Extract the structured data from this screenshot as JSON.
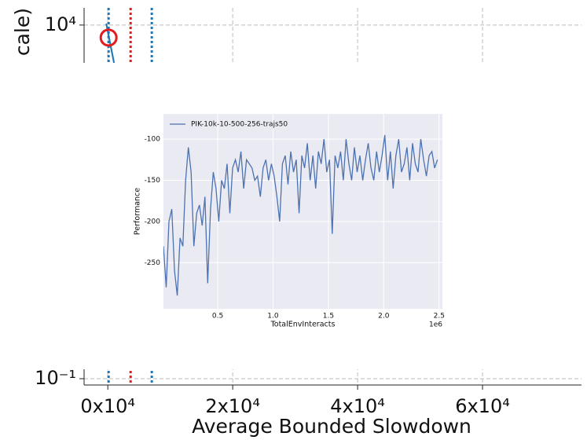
{
  "chart_data": [
    {
      "type": "line",
      "ylabel": "cale)",
      "xlabel": "Average Bounded Slowdown",
      "ylog": true,
      "grid": true,
      "xlim": [
        -3800,
        75850
      ],
      "ylim": [
        0.0815,
        17500
      ],
      "xticks": [
        {
          "value": 0,
          "label": "0x10⁴"
        },
        {
          "value": 20000,
          "label": "2x10⁴"
        },
        {
          "value": 40000,
          "label": "4x10⁴"
        },
        {
          "value": 60000,
          "label": "6x10⁴"
        }
      ],
      "yticks": [
        {
          "value": 0.1,
          "label": "10⁻¹"
        },
        {
          "value": 10000,
          "label": "10⁴"
        }
      ],
      "x": [
        -250,
        1000
      ],
      "series": [
        {
          "color": "#1f77b4",
          "values": [
            10500,
            2930
          ]
        }
      ],
      "circle": {
        "x": 125,
        "y": 6650,
        "color": "#e41a1c"
      },
      "vlines": [
        {
          "x": 125,
          "color": "#1f77b4"
        },
        {
          "x": 3650,
          "color": "#e41a1c"
        },
        {
          "x": 7040,
          "color": "#1f77b4"
        }
      ]
    },
    {
      "type": "line",
      "xlabel": "TotalEnvInteracts",
      "ylabel": "Performance",
      "offset_label": "1e6",
      "grid": true,
      "legend": "upper left",
      "xlim": [
        0.01,
        2.53
      ],
      "ylim": [
        -306,
        -69.4
      ],
      "xticks": [
        0.5,
        {
          "value": 1,
          "label": "1.0"
        },
        1.5,
        {
          "value": 2,
          "label": "2.0"
        },
        2.5
      ],
      "yticks": [
        -100,
        -150,
        -200,
        -250
      ],
      "x": [
        0.01,
        0.035,
        0.06,
        0.085,
        0.11,
        0.135,
        0.16,
        0.185,
        0.21,
        0.235,
        0.26,
        0.285,
        0.31,
        0.335,
        0.36,
        0.385,
        0.41,
        0.435,
        0.46,
        0.485,
        0.51,
        0.535,
        0.56,
        0.585,
        0.61,
        0.635,
        0.66,
        0.685,
        0.71,
        0.735,
        0.76,
        0.785,
        0.81,
        0.835,
        0.86,
        0.885,
        0.91,
        0.935,
        0.96,
        0.985,
        1.01,
        1.035,
        1.06,
        1.085,
        1.11,
        1.135,
        1.16,
        1.185,
        1.21,
        1.235,
        1.26,
        1.285,
        1.31,
        1.335,
        1.36,
        1.385,
        1.41,
        1.435,
        1.46,
        1.485,
        1.51,
        1.535,
        1.56,
        1.585,
        1.61,
        1.635,
        1.66,
        1.685,
        1.71,
        1.735,
        1.76,
        1.785,
        1.81,
        1.835,
        1.86,
        1.885,
        1.91,
        1.935,
        1.96,
        1.985,
        2.01,
        2.035,
        2.06,
        2.085,
        2.11,
        2.135,
        2.16,
        2.185,
        2.21,
        2.235,
        2.26,
        2.285,
        2.31,
        2.335,
        2.36,
        2.385,
        2.41,
        2.435,
        2.46,
        2.485
      ],
      "series": [
        {
          "name": "PIK-10k-10-500-256-trajs50",
          "color": "#4c72b0",
          "values": [
            -230,
            -280,
            -200,
            -185,
            -260,
            -290,
            -220,
            -230,
            -150,
            -110,
            -140,
            -230,
            -190,
            -180,
            -205,
            -170,
            -275,
            -185,
            -140,
            -160,
            -200,
            -150,
            -160,
            -130,
            -190,
            -135,
            -125,
            -140,
            -115,
            -160,
            -125,
            -130,
            -135,
            -150,
            -145,
            -170,
            -135,
            -125,
            -150,
            -130,
            -145,
            -170,
            -200,
            -130,
            -120,
            -155,
            -115,
            -140,
            -125,
            -190,
            -120,
            -135,
            -105,
            -150,
            -120,
            -160,
            -115,
            -130,
            -100,
            -140,
            -125,
            -215,
            -120,
            -135,
            -115,
            -150,
            -100,
            -130,
            -150,
            -110,
            -140,
            -120,
            -150,
            -125,
            -105,
            -135,
            -150,
            -115,
            -140,
            -120,
            -95,
            -150,
            -115,
            -160,
            -120,
            -100,
            -140,
            -130,
            -110,
            -150,
            -105,
            -130,
            -140,
            -100,
            -125,
            -145,
            -120,
            -115,
            -135,
            -125
          ]
        }
      ]
    }
  ]
}
